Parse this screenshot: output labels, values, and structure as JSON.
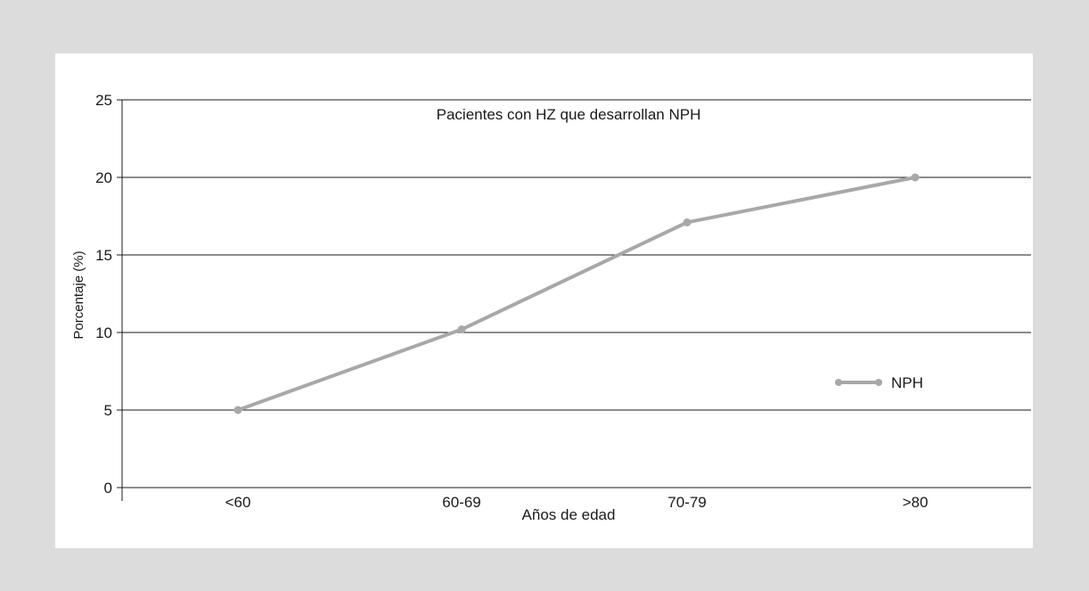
{
  "chart_data": {
    "type": "line",
    "title": "Pacientes con HZ que desarrollan NPH",
    "xlabel": "Años de edad",
    "ylabel": "Porcentaje (%)",
    "categories": [
      "<60",
      "60-69",
      "70-79",
      ">80"
    ],
    "series": [
      {
        "name": "NPH",
        "values": [
          5,
          10.2,
          17.1,
          20
        ]
      }
    ],
    "ylim": [
      0,
      25
    ],
    "yticks": [
      0,
      5,
      10,
      15,
      20,
      25
    ],
    "grid": true,
    "legend": "right",
    "colors": {
      "line": "#a8a8a8",
      "grid": "#1a1a1a",
      "panel": "#ffffff",
      "background": "#dcdcdd"
    }
  }
}
